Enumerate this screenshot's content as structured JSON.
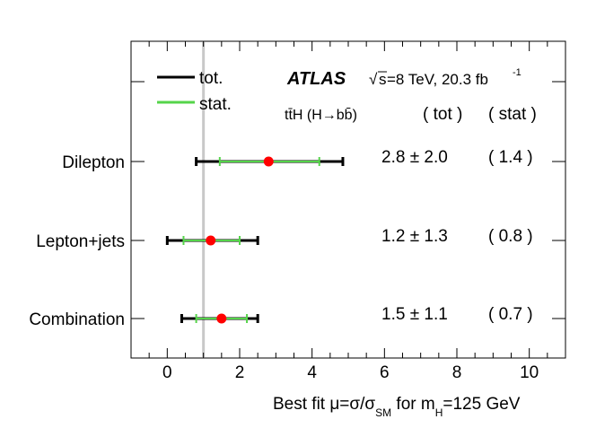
{
  "chart_data": {
    "type": "scatter",
    "experiment": "ATLAS",
    "energy_prefix": "√",
    "energy_s": "s",
    "energy_value": "=8 TeV, 20.3 fb",
    "energy_exp": "-1",
    "process": "tt̄H (H→bb̄)",
    "col_tot": "( tot )",
    "col_stat": "( stat )",
    "legend": [
      {
        "label": "tot.",
        "color": "#000000"
      },
      {
        "label": "stat.",
        "color": "#55d44a"
      }
    ],
    "xlim": [
      -1,
      11
    ],
    "xticks": [
      0,
      2,
      4,
      6,
      8,
      10
    ],
    "xlabel": "Best fit μ=σ/σSM for mH=125 GeV",
    "xlabel_parts": {
      "a": "Best fit μ=σ/σ",
      "a_sub": "SM",
      "b": " for m",
      "b_sub": "H",
      "c": "=125 GeV"
    },
    "sm_reference": 1,
    "point_color": "#ff0000",
    "categories": [
      {
        "name": "Dilepton",
        "mu": 2.8,
        "tot_lo": 0.8,
        "tot_hi": 4.85,
        "stat_lo": 1.45,
        "stat_hi": 4.2,
        "result": "2.8 ± 2.0",
        "stat_text": "( 1.4 )"
      },
      {
        "name": "Lepton+jets",
        "mu": 1.2,
        "tot_lo": 0.0,
        "tot_hi": 2.5,
        "stat_lo": 0.45,
        "stat_hi": 2.0,
        "result": "1.2 ± 1.3",
        "stat_text": "( 0.8 )"
      },
      {
        "name": "Combination",
        "mu": 1.5,
        "tot_lo": 0.4,
        "tot_hi": 2.5,
        "stat_lo": 0.8,
        "stat_hi": 2.2,
        "result": "1.5 ± 1.1",
        "stat_text": "( 0.7 )"
      }
    ]
  }
}
